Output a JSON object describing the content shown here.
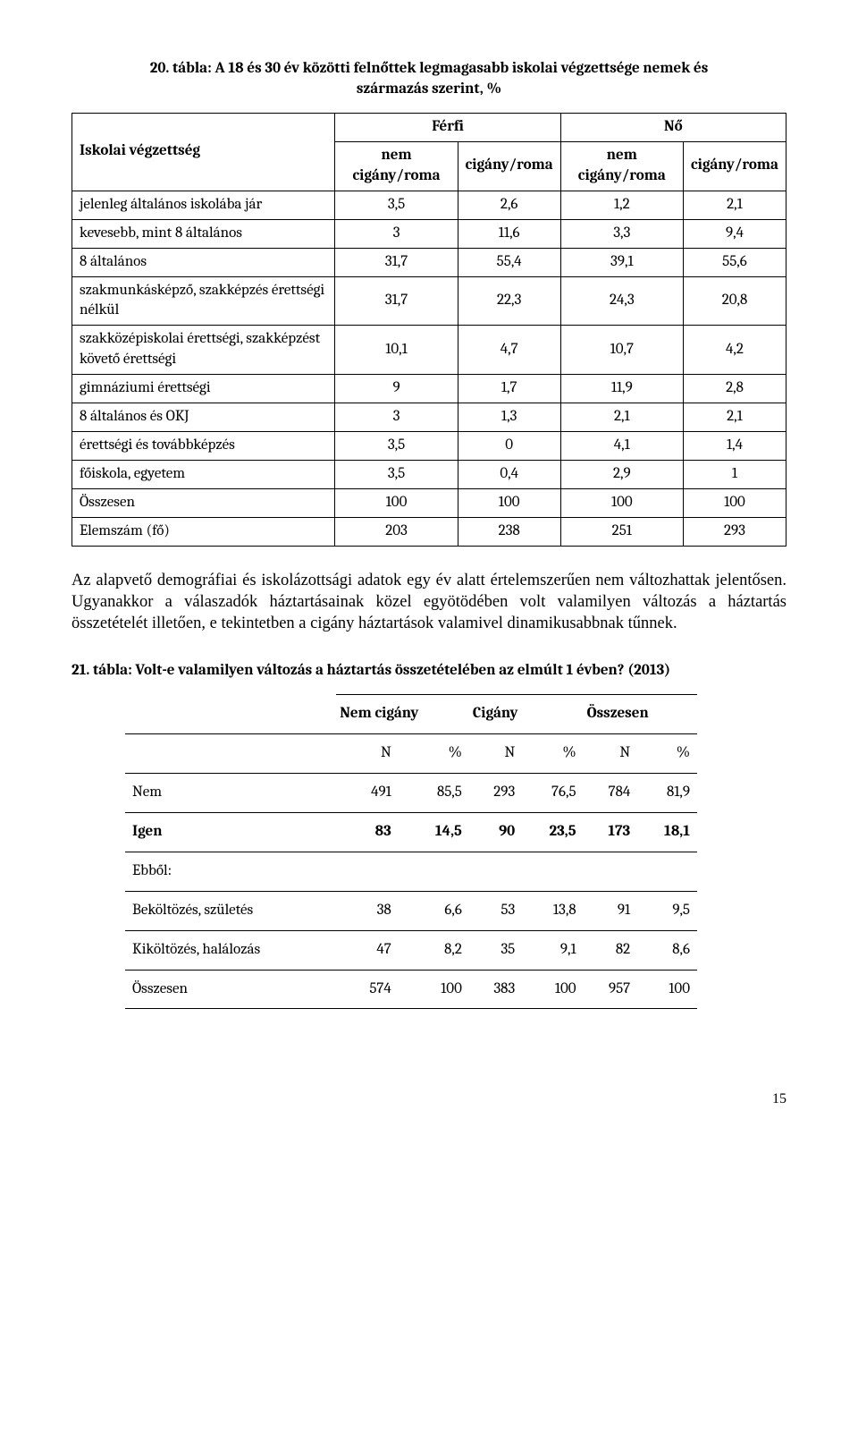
{
  "table1": {
    "caption_line1": "20. tábla: A 18 és 30 év közötti felnőttek legmagasabb iskolai végzettsége nemek és",
    "caption_line2": "származás szerint, %",
    "row_header": "Iskolai végzettség",
    "group_headers": [
      "Férfi",
      "Nő"
    ],
    "sub_headers": [
      "nem cigány/roma",
      "cigány/roma",
      "nem cigány/roma",
      "cigány/roma"
    ],
    "rows": [
      {
        "label": "jelenleg általános iskolába jár",
        "v": [
          "3,5",
          "2,6",
          "1,2",
          "2,1"
        ]
      },
      {
        "label": "kevesebb, mint 8 általános",
        "v": [
          "3",
          "11,6",
          "3,3",
          "9,4"
        ]
      },
      {
        "label": "8 általános",
        "v": [
          "31,7",
          "55,4",
          "39,1",
          "55,6"
        ]
      },
      {
        "label": "szakmunkásképző, szakképzés érettségi nélkül",
        "v": [
          "31,7",
          "22,3",
          "24,3",
          "20,8"
        ]
      },
      {
        "label": "szakközépiskolai érettségi, szakképzést követő érettségi",
        "v": [
          "10,1",
          "4,7",
          "10,7",
          "4,2"
        ]
      },
      {
        "label": "gimnáziumi érettségi",
        "v": [
          "9",
          "1,7",
          "11,9",
          "2,8"
        ]
      },
      {
        "label": "8 általános és OKJ",
        "v": [
          "3",
          "1,3",
          "2,1",
          "2,1"
        ]
      },
      {
        "label": "érettségi és továbbképzés",
        "v": [
          "3,5",
          "0",
          "4,1",
          "1,4"
        ]
      },
      {
        "label": "főiskola, egyetem",
        "v": [
          "3,5",
          "0,4",
          "2,9",
          "1"
        ]
      },
      {
        "label": "Összesen",
        "v": [
          "100",
          "100",
          "100",
          "100"
        ]
      },
      {
        "label": "Elemszám (fő)",
        "v": [
          "203",
          "238",
          "251",
          "293"
        ]
      }
    ]
  },
  "paragraph": "Az alapvető demográfiai és iskolázottsági adatok egy év alatt értelemszerűen nem változhattak jelentősen. Ugyanakkor a válaszadók háztartásainak közel egyötödében volt valamilyen változás a háztartás összetételét illetően, e tekintetben a cigány háztartások valamivel dinamikusabbnak tűnnek.",
  "table2": {
    "caption": "21. tábla: Volt-e valamilyen változás a háztartás összetételében az elmúlt 1 évben? (2013)",
    "group_headers": [
      "Nem cigány",
      "Cigány",
      "Összesen"
    ],
    "sub_headers": [
      "N",
      "%",
      "N",
      "%",
      "N",
      "%"
    ],
    "rows": [
      {
        "label": "Nem",
        "bold": false,
        "v": [
          "491",
          "85,5",
          "293",
          "76,5",
          "784",
          "81,9"
        ]
      },
      {
        "label": "Igen",
        "bold": true,
        "v": [
          "83",
          "14,5",
          "90",
          "23,5",
          "173",
          "18,1"
        ]
      },
      {
        "label": "Ebből:",
        "bold": false,
        "v": [
          "",
          "",
          "",
          "",
          "",
          ""
        ],
        "spacer": true
      },
      {
        "label": "Beköltözés, születés",
        "bold": false,
        "v": [
          "38",
          "6,6",
          "53",
          "13,8",
          "91",
          "9,5"
        ]
      },
      {
        "label": "Kiköltözés, halálozás",
        "bold": false,
        "v": [
          "47",
          "8,2",
          "35",
          "9,1",
          "82",
          "8,6"
        ]
      },
      {
        "label": "Összesen",
        "bold": false,
        "v": [
          "574",
          "100",
          "383",
          "100",
          "957",
          "100"
        ]
      }
    ]
  },
  "page_number": "15"
}
